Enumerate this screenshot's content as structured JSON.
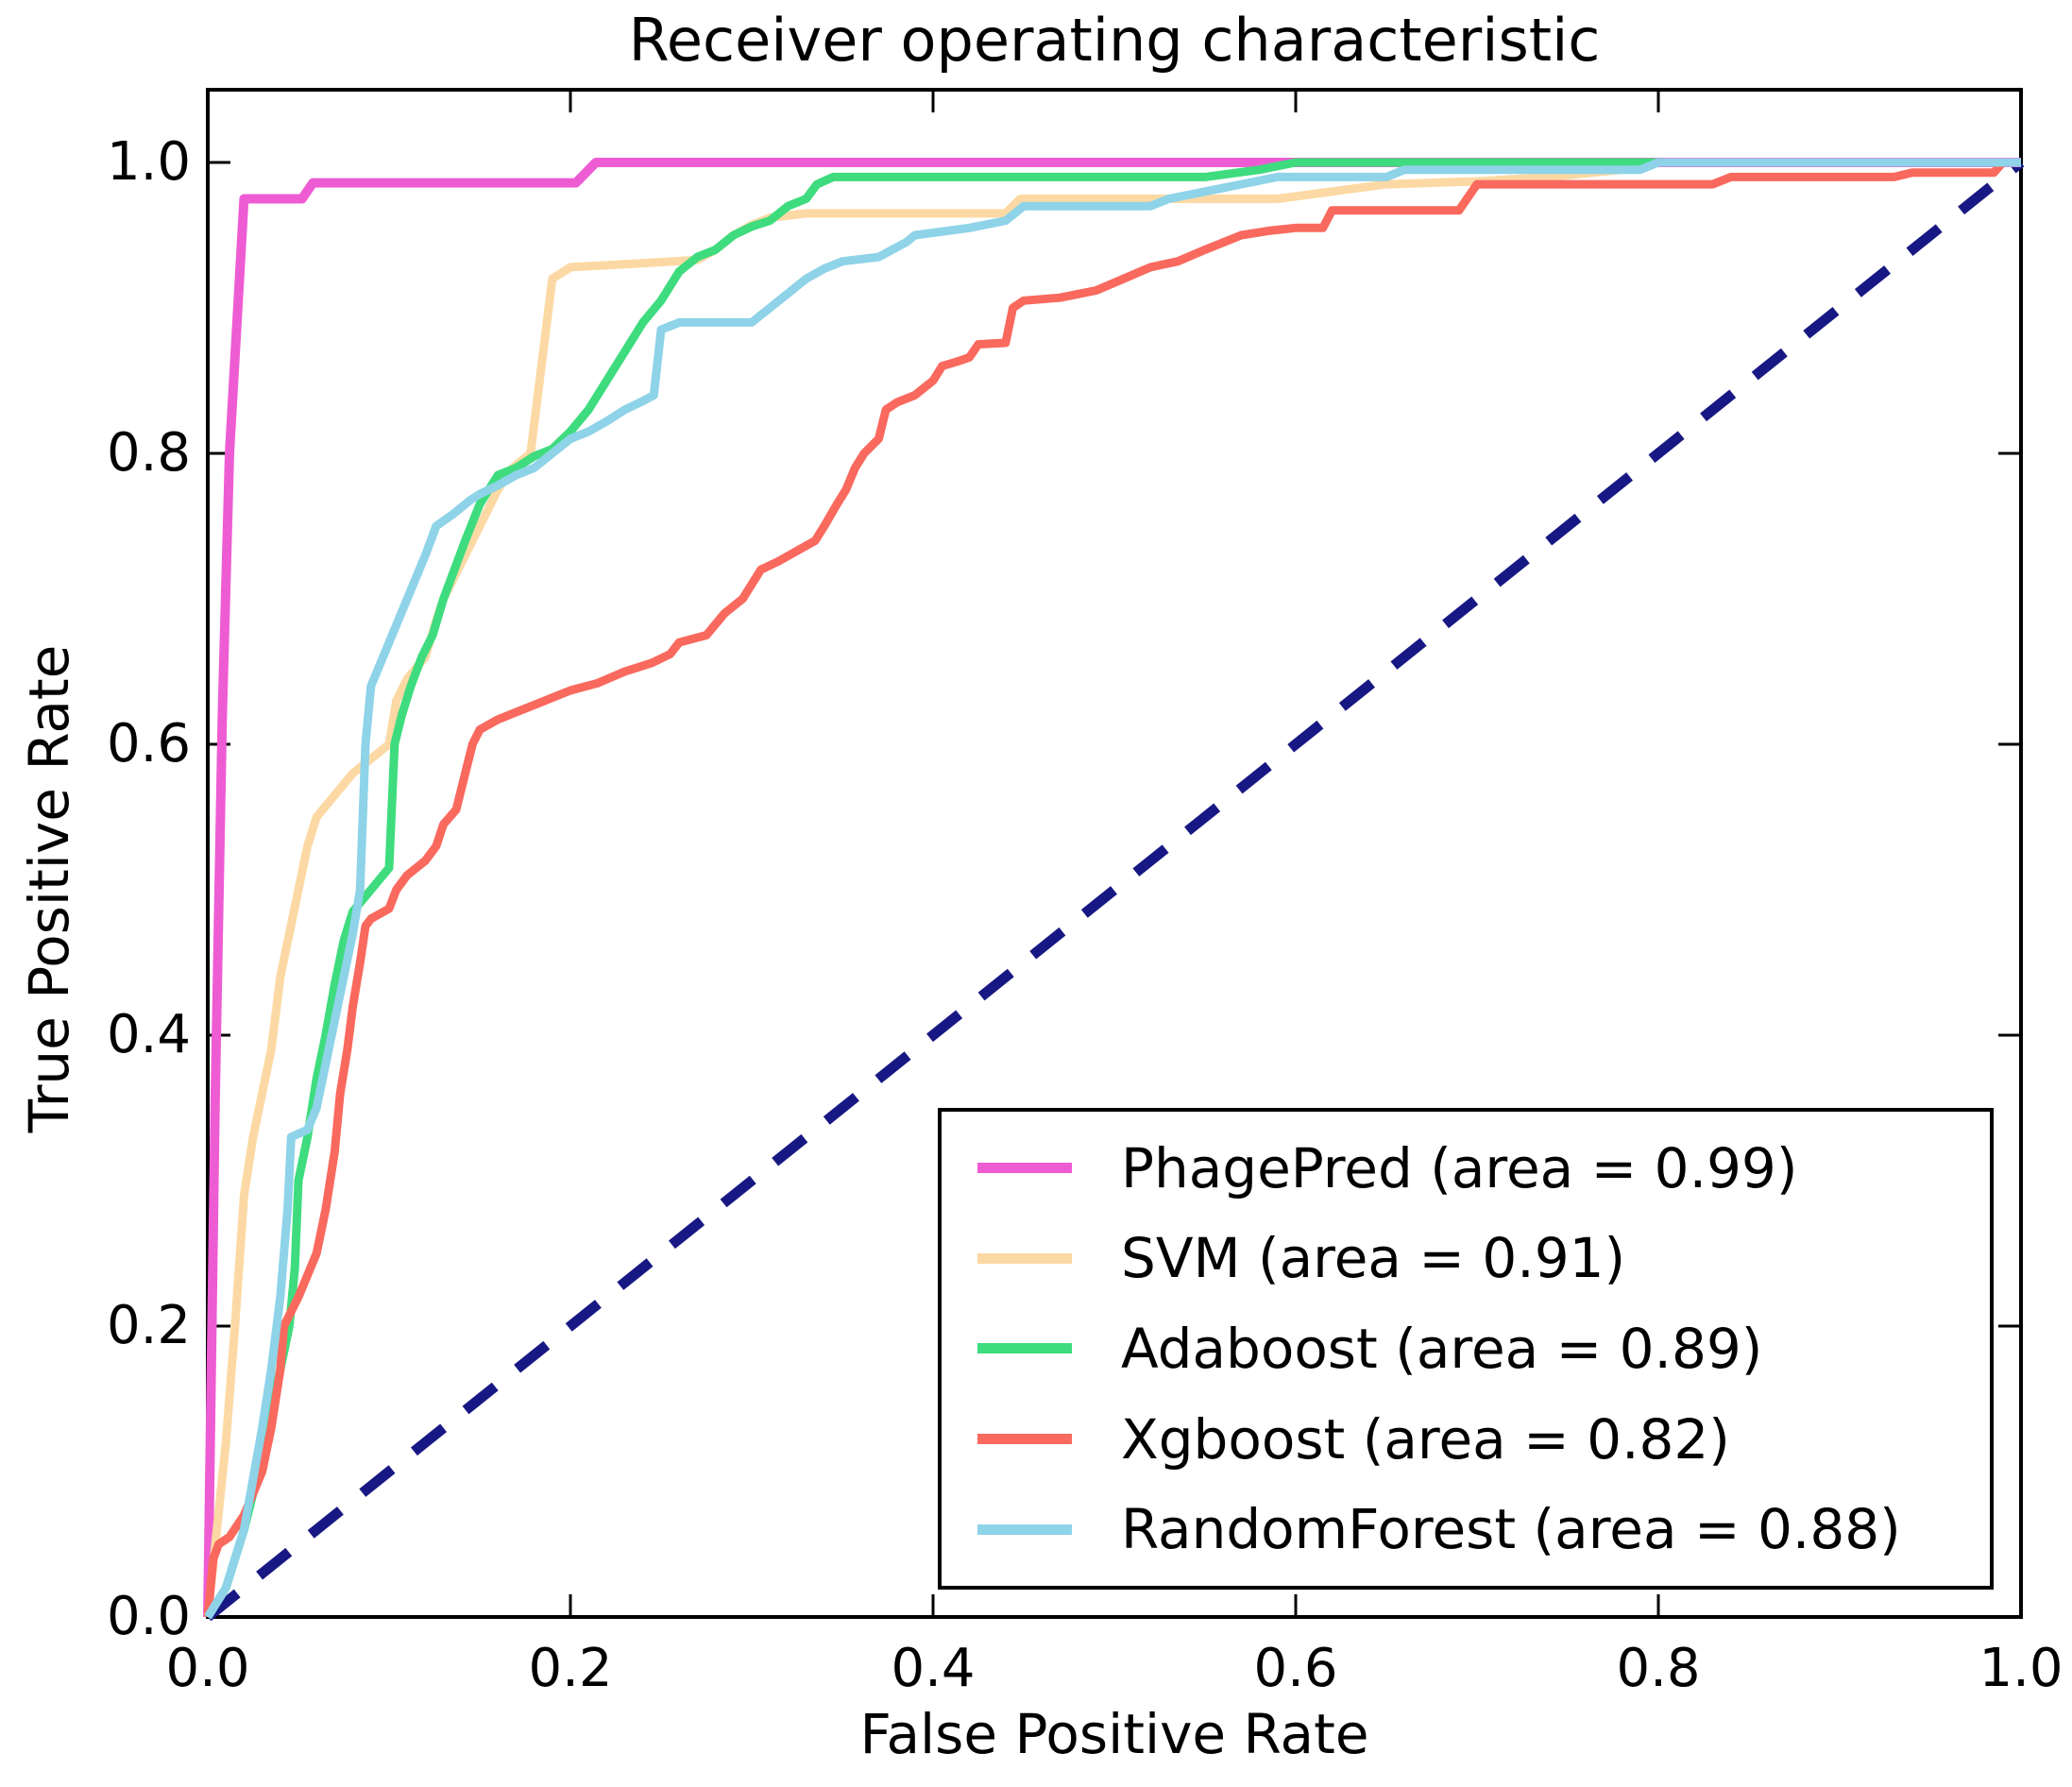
{
  "figure": {
    "title": "Receiver operating characteristic",
    "xlabel": "False Positive Rate",
    "ylabel": "True Positive Rate"
  },
  "chart_data": {
    "type": "line",
    "title": "Receiver operating characteristic",
    "xlabel": "False Positive Rate",
    "ylabel": "True Positive Rate",
    "xlim": [
      0.0,
      1.0
    ],
    "ylim": [
      0.0,
      1.05
    ],
    "x_ticks": [
      0.0,
      0.2,
      0.4,
      0.6,
      0.8,
      1.0
    ],
    "y_ticks": [
      0.0,
      0.2,
      0.4,
      0.6,
      0.8,
      1.0
    ],
    "x_tick_labels": [
      "0.0",
      "0.2",
      "0.4",
      "0.6",
      "0.8",
      "1.0"
    ],
    "y_tick_labels": [
      "0.0",
      "0.2",
      "0.4",
      "0.6",
      "0.8",
      "1.0"
    ],
    "grid": false,
    "legend_position": "lower right",
    "axis_color": "#000000",
    "background_color": "#ffffff",
    "series": [
      {
        "name": "PhagePred",
        "label": "PhagePred (area = 0.99)",
        "auc": 0.99,
        "color": "#ee5cd3",
        "line_width": 10,
        "points": [
          [
            0,
            0
          ],
          [
            0.004,
            0.35
          ],
          [
            0.008,
            0.62
          ],
          [
            0.012,
            0.8
          ],
          [
            0.02,
            0.975
          ],
          [
            0.052,
            0.975
          ],
          [
            0.058,
            0.986
          ],
          [
            0.203,
            0.986
          ],
          [
            0.214,
            1.0
          ],
          [
            1.0,
            1.0
          ]
        ]
      },
      {
        "name": "SVM",
        "label": "SVM (area = 0.91)",
        "auc": 0.91,
        "color": "#fcd9a4",
        "line_width": 9,
        "points": [
          [
            0,
            0
          ],
          [
            0.005,
            0.06
          ],
          [
            0.01,
            0.12
          ],
          [
            0.015,
            0.2
          ],
          [
            0.02,
            0.29
          ],
          [
            0.025,
            0.33
          ],
          [
            0.03,
            0.36
          ],
          [
            0.035,
            0.39
          ],
          [
            0.04,
            0.44
          ],
          [
            0.045,
            0.47
          ],
          [
            0.05,
            0.5
          ],
          [
            0.055,
            0.53
          ],
          [
            0.06,
            0.55
          ],
          [
            0.07,
            0.565
          ],
          [
            0.08,
            0.58
          ],
          [
            0.09,
            0.59
          ],
          [
            0.1,
            0.6
          ],
          [
            0.104,
            0.63
          ],
          [
            0.11,
            0.645
          ],
          [
            0.12,
            0.66
          ],
          [
            0.126,
            0.685
          ],
          [
            0.13,
            0.7
          ],
          [
            0.14,
            0.725
          ],
          [
            0.15,
            0.75
          ],
          [
            0.16,
            0.775
          ],
          [
            0.168,
            0.79
          ],
          [
            0.178,
            0.8
          ],
          [
            0.184,
            0.86
          ],
          [
            0.19,
            0.92
          ],
          [
            0.2,
            0.928
          ],
          [
            0.23,
            0.93
          ],
          [
            0.27,
            0.933
          ],
          [
            0.28,
            0.94
          ],
          [
            0.29,
            0.95
          ],
          [
            0.3,
            0.957
          ],
          [
            0.31,
            0.962
          ],
          [
            0.33,
            0.965
          ],
          [
            0.44,
            0.965
          ],
          [
            0.448,
            0.975
          ],
          [
            0.59,
            0.975
          ],
          [
            0.62,
            0.98
          ],
          [
            0.65,
            0.985
          ],
          [
            0.7,
            0.987
          ],
          [
            0.74,
            0.99
          ],
          [
            0.78,
            0.995
          ],
          [
            0.8,
            1.0
          ],
          [
            1.0,
            1.0
          ]
        ]
      },
      {
        "name": "Adaboost",
        "label": "Adaboost (area = 0.89)",
        "auc": 0.89,
        "color": "#3edc7e",
        "line_width": 9,
        "points": [
          [
            0,
            0
          ],
          [
            0.01,
            0.02
          ],
          [
            0.02,
            0.06
          ],
          [
            0.03,
            0.11
          ],
          [
            0.04,
            0.17
          ],
          [
            0.045,
            0.2
          ],
          [
            0.048,
            0.24
          ],
          [
            0.05,
            0.3
          ],
          [
            0.055,
            0.33
          ],
          [
            0.06,
            0.37
          ],
          [
            0.065,
            0.4
          ],
          [
            0.07,
            0.435
          ],
          [
            0.075,
            0.465
          ],
          [
            0.08,
            0.485
          ],
          [
            0.09,
            0.5
          ],
          [
            0.1,
            0.515
          ],
          [
            0.103,
            0.6
          ],
          [
            0.107,
            0.62
          ],
          [
            0.112,
            0.64
          ],
          [
            0.118,
            0.66
          ],
          [
            0.124,
            0.675
          ],
          [
            0.13,
            0.7
          ],
          [
            0.136,
            0.72
          ],
          [
            0.142,
            0.74
          ],
          [
            0.15,
            0.765
          ],
          [
            0.155,
            0.775
          ],
          [
            0.16,
            0.785
          ],
          [
            0.17,
            0.79
          ],
          [
            0.18,
            0.798
          ],
          [
            0.19,
            0.803
          ],
          [
            0.2,
            0.815
          ],
          [
            0.21,
            0.83
          ],
          [
            0.22,
            0.85
          ],
          [
            0.23,
            0.87
          ],
          [
            0.24,
            0.89
          ],
          [
            0.25,
            0.905
          ],
          [
            0.26,
            0.925
          ],
          [
            0.27,
            0.935
          ],
          [
            0.28,
            0.94
          ],
          [
            0.29,
            0.95
          ],
          [
            0.3,
            0.956
          ],
          [
            0.31,
            0.96
          ],
          [
            0.32,
            0.97
          ],
          [
            0.33,
            0.975
          ],
          [
            0.336,
            0.985
          ],
          [
            0.345,
            0.99
          ],
          [
            0.55,
            0.99
          ],
          [
            0.58,
            0.995
          ],
          [
            0.6,
            1.0
          ],
          [
            1.0,
            1.0
          ]
        ]
      },
      {
        "name": "Xgboost",
        "label": "Xgboost (area = 0.82)",
        "auc": 0.82,
        "color": "#f9695e",
        "line_width": 9,
        "points": [
          [
            0,
            0
          ],
          [
            0.003,
            0.04
          ],
          [
            0.006,
            0.05
          ],
          [
            0.012,
            0.055
          ],
          [
            0.02,
            0.07
          ],
          [
            0.03,
            0.1
          ],
          [
            0.035,
            0.13
          ],
          [
            0.04,
            0.17
          ],
          [
            0.042,
            0.2
          ],
          [
            0.05,
            0.22
          ],
          [
            0.055,
            0.235
          ],
          [
            0.06,
            0.25
          ],
          [
            0.065,
            0.28
          ],
          [
            0.07,
            0.32
          ],
          [
            0.073,
            0.36
          ],
          [
            0.077,
            0.39
          ],
          [
            0.08,
            0.42
          ],
          [
            0.084,
            0.45
          ],
          [
            0.087,
            0.475
          ],
          [
            0.09,
            0.48
          ],
          [
            0.1,
            0.487
          ],
          [
            0.104,
            0.5
          ],
          [
            0.11,
            0.51
          ],
          [
            0.12,
            0.52
          ],
          [
            0.126,
            0.53
          ],
          [
            0.13,
            0.545
          ],
          [
            0.137,
            0.555
          ],
          [
            0.142,
            0.58
          ],
          [
            0.146,
            0.6
          ],
          [
            0.15,
            0.61
          ],
          [
            0.16,
            0.617
          ],
          [
            0.17,
            0.622
          ],
          [
            0.18,
            0.627
          ],
          [
            0.19,
            0.632
          ],
          [
            0.2,
            0.637
          ],
          [
            0.215,
            0.642
          ],
          [
            0.23,
            0.65
          ],
          [
            0.245,
            0.656
          ],
          [
            0.255,
            0.662
          ],
          [
            0.26,
            0.67
          ],
          [
            0.275,
            0.675
          ],
          [
            0.285,
            0.69
          ],
          [
            0.295,
            0.7
          ],
          [
            0.3,
            0.71
          ],
          [
            0.305,
            0.72
          ],
          [
            0.315,
            0.726
          ],
          [
            0.325,
            0.733
          ],
          [
            0.335,
            0.74
          ],
          [
            0.34,
            0.75
          ],
          [
            0.347,
            0.765
          ],
          [
            0.352,
            0.775
          ],
          [
            0.357,
            0.79
          ],
          [
            0.362,
            0.8
          ],
          [
            0.37,
            0.81
          ],
          [
            0.374,
            0.83
          ],
          [
            0.38,
            0.835
          ],
          [
            0.39,
            0.84
          ],
          [
            0.4,
            0.85
          ],
          [
            0.405,
            0.86
          ],
          [
            0.413,
            0.863
          ],
          [
            0.42,
            0.866
          ],
          [
            0.425,
            0.875
          ],
          [
            0.44,
            0.876
          ],
          [
            0.444,
            0.9
          ],
          [
            0.45,
            0.905
          ],
          [
            0.47,
            0.907
          ],
          [
            0.49,
            0.912
          ],
          [
            0.505,
            0.92
          ],
          [
            0.52,
            0.928
          ],
          [
            0.535,
            0.932
          ],
          [
            0.55,
            0.94
          ],
          [
            0.56,
            0.945
          ],
          [
            0.57,
            0.95
          ],
          [
            0.585,
            0.953
          ],
          [
            0.6,
            0.955
          ],
          [
            0.615,
            0.955
          ],
          [
            0.62,
            0.967
          ],
          [
            0.69,
            0.967
          ],
          [
            0.7,
            0.985
          ],
          [
            0.83,
            0.985
          ],
          [
            0.84,
            0.99
          ],
          [
            0.93,
            0.99
          ],
          [
            0.94,
            0.993
          ],
          [
            0.985,
            0.993
          ],
          [
            0.99,
            1.0
          ],
          [
            1.0,
            1.0
          ]
        ]
      },
      {
        "name": "RandomForest",
        "label": "RandomForest (area = 0.88)",
        "auc": 0.88,
        "color": "#8ed3e8",
        "line_width": 9,
        "points": [
          [
            0,
            0
          ],
          [
            0.01,
            0.02
          ],
          [
            0.02,
            0.06
          ],
          [
            0.03,
            0.13
          ],
          [
            0.035,
            0.17
          ],
          [
            0.04,
            0.22
          ],
          [
            0.044,
            0.28
          ],
          [
            0.046,
            0.33
          ],
          [
            0.055,
            0.335
          ],
          [
            0.06,
            0.35
          ],
          [
            0.065,
            0.38
          ],
          [
            0.07,
            0.41
          ],
          [
            0.075,
            0.44
          ],
          [
            0.08,
            0.47
          ],
          [
            0.084,
            0.5
          ],
          [
            0.087,
            0.6
          ],
          [
            0.09,
            0.64
          ],
          [
            0.095,
            0.655
          ],
          [
            0.1,
            0.67
          ],
          [
            0.105,
            0.685
          ],
          [
            0.11,
            0.7
          ],
          [
            0.115,
            0.715
          ],
          [
            0.12,
            0.73
          ],
          [
            0.126,
            0.75
          ],
          [
            0.135,
            0.758
          ],
          [
            0.145,
            0.768
          ],
          [
            0.15,
            0.772
          ],
          [
            0.16,
            0.778
          ],
          [
            0.17,
            0.785
          ],
          [
            0.18,
            0.79
          ],
          [
            0.19,
            0.8
          ],
          [
            0.2,
            0.81
          ],
          [
            0.21,
            0.815
          ],
          [
            0.22,
            0.822
          ],
          [
            0.23,
            0.83
          ],
          [
            0.24,
            0.836
          ],
          [
            0.246,
            0.84
          ],
          [
            0.25,
            0.885
          ],
          [
            0.26,
            0.89
          ],
          [
            0.3,
            0.89
          ],
          [
            0.31,
            0.9
          ],
          [
            0.32,
            0.91
          ],
          [
            0.33,
            0.92
          ],
          [
            0.34,
            0.927
          ],
          [
            0.35,
            0.932
          ],
          [
            0.37,
            0.935
          ],
          [
            0.385,
            0.945
          ],
          [
            0.39,
            0.95
          ],
          [
            0.42,
            0.955
          ],
          [
            0.44,
            0.96
          ],
          [
            0.45,
            0.97
          ],
          [
            0.52,
            0.97
          ],
          [
            0.53,
            0.975
          ],
          [
            0.55,
            0.98
          ],
          [
            0.57,
            0.985
          ],
          [
            0.59,
            0.99
          ],
          [
            0.65,
            0.99
          ],
          [
            0.66,
            0.995
          ],
          [
            0.79,
            0.995
          ],
          [
            0.8,
            1.0
          ],
          [
            1.0,
            1.0
          ]
        ]
      }
    ],
    "reference_line": {
      "name": "chance-diagonal",
      "style": "dashed",
      "color": "#181884",
      "line_width": 11,
      "points": [
        [
          0,
          0
        ],
        [
          1,
          1
        ]
      ]
    }
  }
}
